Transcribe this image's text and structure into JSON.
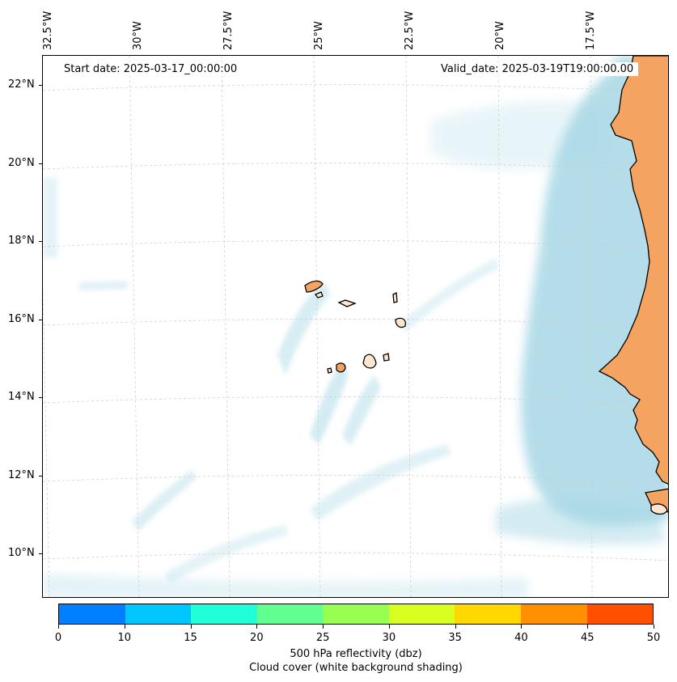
{
  "map": {
    "start_date": "Start date: 2025-03-17_00:00:00",
    "valid_date": "Valid_date: 2025-03-19T19:00:00.00",
    "longitude_labels": [
      "32.5°W",
      "30°W",
      "27.5°W",
      "25°W",
      "22.5°W",
      "20°W",
      "17.5°W"
    ],
    "latitude_labels": [
      "22°N",
      "20°N",
      "18°N",
      "16°N",
      "14°N",
      "12°N",
      "10°N"
    ],
    "land_color": "#f4a460",
    "cloud_color": "#a8d8e6",
    "grid_color": "#cccccc"
  },
  "colorbar": {
    "ticks": [
      "0",
      "10",
      "15",
      "20",
      "25",
      "30",
      "35",
      "40",
      "45",
      "50"
    ],
    "colors": [
      "#0080ff",
      "#00c8ff",
      "#20ffd8",
      "#60ff90",
      "#98ff50",
      "#d8ff20",
      "#ffd800",
      "#ff9000",
      "#ff5000"
    ],
    "label_line1": "500 hPa reflectivity (dbz)",
    "label_line2": "Cloud cover (white background shading)"
  }
}
